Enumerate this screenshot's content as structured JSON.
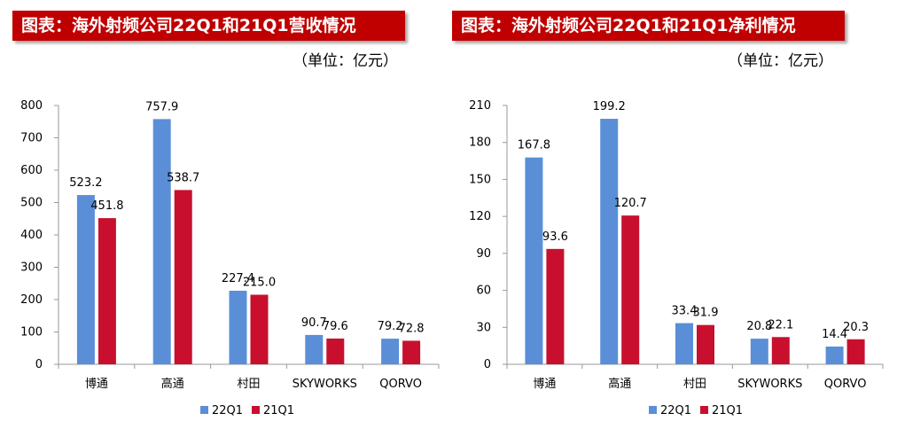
{
  "chart_data": [
    {
      "type": "bar",
      "title": "图表：海外射频公司22Q1和21Q1营收情况",
      "unit": "（单位：亿元）",
      "categories": [
        "博通",
        "高通",
        "村田",
        "SKYWORKS",
        "QORVO"
      ],
      "series": [
        {
          "name": "22Q1",
          "values": [
            523.2,
            757.9,
            227.4,
            90.7,
            79.2
          ],
          "color": "#5a8fd8"
        },
        {
          "name": "21Q1",
          "values": [
            451.8,
            538.7,
            215.0,
            79.6,
            72.8
          ],
          "color": "#c8102e"
        }
      ],
      "data_labels": [
        [
          "523.2",
          "757.9",
          "227.4",
          "90.7",
          "79.2"
        ],
        [
          "451.8",
          "538.7",
          "215.0",
          "79.6",
          "72.8"
        ]
      ],
      "ylim": [
        0,
        800
      ],
      "yticks": [
        0,
        100,
        200,
        300,
        400,
        500,
        600,
        700,
        800
      ],
      "legend": "bottom",
      "grid": false
    },
    {
      "type": "bar",
      "title": "图表：海外射频公司22Q1和21Q1净利情况",
      "unit": "（单位：亿元）",
      "categories": [
        "博通",
        "高通",
        "村田",
        "SKYWORKS",
        "QORVO"
      ],
      "series": [
        {
          "name": "22Q1",
          "values": [
            167.8,
            199.2,
            33.4,
            20.8,
            14.4
          ],
          "color": "#5a8fd8"
        },
        {
          "name": "21Q1",
          "values": [
            93.6,
            120.7,
            31.9,
            22.1,
            20.3
          ],
          "color": "#c8102e"
        }
      ],
      "data_labels": [
        [
          "167.8",
          "199.2",
          "33.4",
          "20.8",
          "14.4"
        ],
        [
          "93.6",
          "120.7",
          "31.9",
          "22.1",
          "20.3"
        ]
      ],
      "ylim": [
        0,
        210
      ],
      "yticks": [
        0,
        30,
        60,
        90,
        120,
        150,
        180,
        210
      ],
      "legend": "bottom",
      "grid": false
    }
  ]
}
